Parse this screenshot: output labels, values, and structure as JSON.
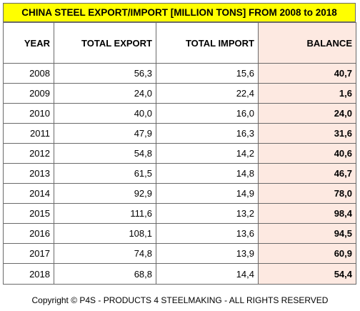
{
  "chart_data": {
    "type": "table",
    "title": "CHINA STEEL EXPORT/IMPORT [MILLION TONS] FROM 2008 to 2018",
    "columns": [
      "YEAR",
      "TOTAL EXPORT",
      "TOTAL IMPORT",
      "BALANCE"
    ],
    "rows": [
      [
        "2008",
        "56,3",
        "15,6",
        "40,7"
      ],
      [
        "2009",
        "24,0",
        "22,4",
        "1,6"
      ],
      [
        "2010",
        "40,0",
        "16,0",
        "24,0"
      ],
      [
        "2011",
        "47,9",
        "16,3",
        "31,6"
      ],
      [
        "2012",
        "54,8",
        "14,2",
        "40,6"
      ],
      [
        "2013",
        "61,5",
        "14,8",
        "46,7"
      ],
      [
        "2014",
        "92,9",
        "14,9",
        "78,0"
      ],
      [
        "2015",
        "111,6",
        "13,2",
        "98,4"
      ],
      [
        "2016",
        "108,1",
        "13,6",
        "94,5"
      ],
      [
        "2017",
        "74,8",
        "13,9",
        "60,9"
      ],
      [
        "2018",
        "68,8",
        "14,4",
        "54,4"
      ]
    ],
    "colors": {
      "title_background": "#ffff00",
      "balance_background": "#fde9e1",
      "border": "#6a6a6a"
    }
  },
  "footer": "Copyright © P4S - PRODUCTS 4 STEELMAKING - ALL RIGHTS RESERVED"
}
